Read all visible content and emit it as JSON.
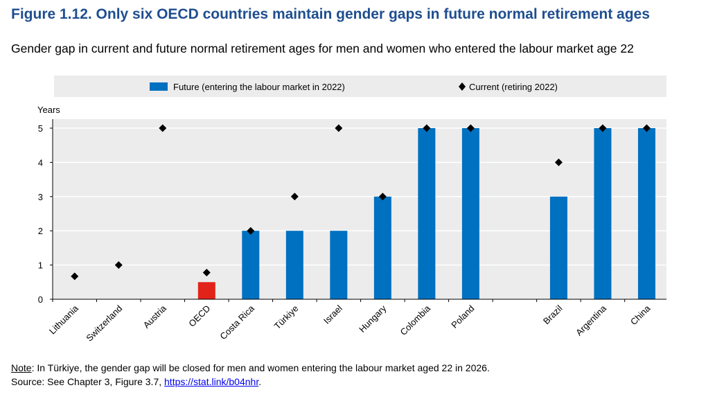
{
  "title": "Figure 1.12. Only six OECD countries maintain gender gaps in future normal retirement ages",
  "subtitle": "Gender gap in current and future normal retirement ages for men and women who entered the labour market age 22",
  "note_label": "Note",
  "note_text": ": In Türkiye, the gender gap will be closed for men and women entering the labour market aged 22 in 2026.",
  "source_text": "Source: See Chapter 3, Figure 3.7, ",
  "source_link": "https://stat.link/b04nhr",
  "source_end": ".",
  "colors": {
    "bar": "#0070c0",
    "highlight": "#e2231a",
    "marker": "#000000",
    "legend_bg": "#ececec"
  },
  "chart_data": {
    "type": "bar",
    "ylabel": "Years",
    "ylim": [
      0,
      5
    ],
    "yticks": [
      0,
      1,
      2,
      3,
      4,
      5
    ],
    "grid": true,
    "legend_position": "top",
    "categories": [
      "Lithuania",
      "Switzerland",
      "Austria",
      "OECD",
      "Costa Rica",
      "Türkiye",
      "Israel",
      "Hungary",
      "Colombia",
      "Poland",
      "",
      "Brazil",
      "Argentina",
      "China"
    ],
    "highlight_category": "OECD",
    "series": [
      {
        "name": "Future (entering the labour market in 2022)",
        "kind": "bar",
        "values": [
          0,
          0,
          0,
          0.5,
          2,
          2,
          2,
          3,
          5,
          5,
          null,
          3,
          5,
          5
        ]
      },
      {
        "name": "Current (retiring 2022)",
        "kind": "marker",
        "values": [
          0.67,
          1,
          5,
          0.78,
          2,
          3,
          5,
          3,
          5,
          5,
          null,
          4,
          5,
          5
        ]
      }
    ]
  }
}
